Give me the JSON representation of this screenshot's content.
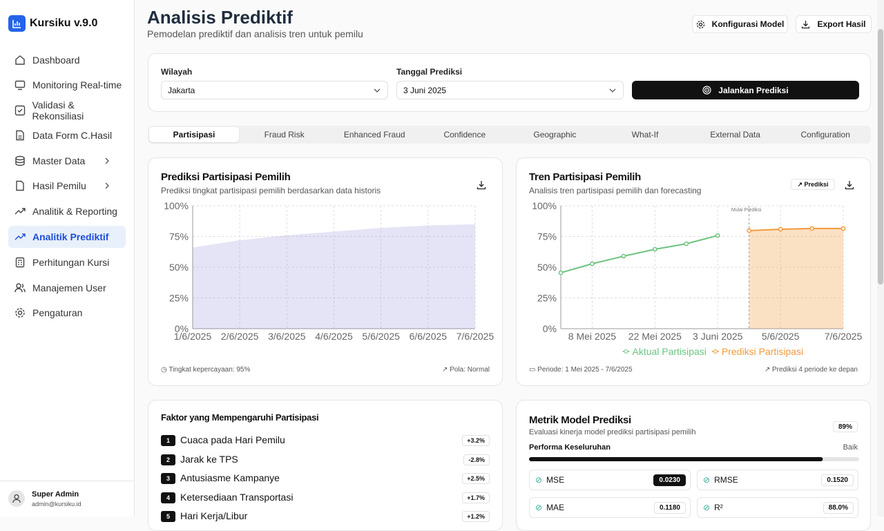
{
  "app": {
    "name": "Kursiku v.9.0"
  },
  "nav": [
    "Dashboard",
    "Monitoring Real-time",
    "Validasi & Rekonsiliasi",
    "Data Form C.Hasil",
    "Master Data",
    "Hasil Pemilu",
    "Analitik & Reporting",
    "Analitik Prediktif",
    "Perhitungan Kursi",
    "Manajemen User",
    "Pengaturan"
  ],
  "user": {
    "name": "Super Admin",
    "email": "admin@kursiku.id"
  },
  "header": {
    "title": "Analisis Prediktif",
    "subtitle": "Pemodelan prediktif dan analisis tren untuk pemilu",
    "buttons": [
      "Konfigurasi Model",
      "Export Hasil"
    ]
  },
  "filters": {
    "region_label": "Wilayah",
    "region_value": "Jakarta",
    "date_label": "Tanggal Prediksi",
    "date_value": "3 Juni 2025",
    "run_button": "Jalankan Prediksi"
  },
  "tabs": [
    "Partisipasi",
    "Fraud Risk",
    "Enhanced Fraud",
    "Confidence",
    "Geographic",
    "What-If",
    "External Data",
    "Configuration"
  ],
  "chart_data": [
    {
      "type": "area",
      "title": "Prediksi Partisipasi Pemilih",
      "subtitle": "Prediksi tingkat partisipasi pemilih berdasarkan data historis",
      "categories": [
        "1/6/2025",
        "2/6/2025",
        "3/6/2025",
        "4/6/2025",
        "5/6/2025",
        "6/6/2025",
        "7/6/2025"
      ],
      "values": [
        66,
        72,
        76,
        79,
        82,
        84,
        85
      ],
      "color": "#8884d8",
      "ylim": [
        0,
        100
      ],
      "yticks": [
        {
          "value": 0,
          "label": "0%"
        },
        {
          "value": 25,
          "label": "25%"
        },
        {
          "value": 50,
          "label": "50%"
        },
        {
          "value": 75,
          "label": "75%"
        },
        {
          "value": 100,
          "label": "100%"
        }
      ],
      "grid": true,
      "footer_left": "Tingkat kepercayaan: 95%",
      "footer_right": "Pola: Normal"
    },
    {
      "type": "line",
      "title": "Tren Partisipasi Pemilih",
      "subtitle": "Analisis tren partisipasi pemilih dan forecasting",
      "badge": "Prediksi",
      "annotation": "Mulai Prediksi",
      "categories": [
        null,
        "8 Mei 2025",
        null,
        "22 Mei 2025",
        null,
        "3 Juni 2025",
        null,
        "5/6/2025",
        null,
        "7/6/2025"
      ],
      "series": [
        {
          "name": "Aktual Partisipasi",
          "color": "#6cc47f",
          "fill": false,
          "values": [
            45.5,
            52.8,
            59,
            64.6,
            69.1,
            75.8,
            null,
            null,
            null,
            null
          ]
        },
        {
          "name": "Prediksi Partisipasi",
          "color": "#f39a3c",
          "fill": true,
          "values": [
            null,
            null,
            null,
            null,
            null,
            null,
            79.8,
            80.9,
            81.5,
            81.5
          ]
        }
      ],
      "ylim": [
        0,
        100
      ],
      "yticks": [
        {
          "value": 0,
          "label": "0%"
        },
        {
          "value": 25,
          "label": "25%"
        },
        {
          "value": 50,
          "label": "50%"
        },
        {
          "value": 75,
          "label": "75%"
        },
        {
          "value": 100,
          "label": "100%"
        }
      ],
      "grid": true,
      "legend": "bottom",
      "footer_left": "Periode: 1 Mei 2025 - 7/6/2025",
      "footer_right": "Prediksi 4 periode ke depan"
    }
  ],
  "factors": {
    "title": "Faktor yang Mempengaruhi Partisipasi",
    "items": [
      {
        "rank": 1,
        "name": "Cuaca pada Hari Pemilu",
        "impact": "+3.2%"
      },
      {
        "rank": 2,
        "name": "Jarak ke TPS",
        "impact": "-2.8%"
      },
      {
        "rank": 3,
        "name": "Antusiasme Kampanye",
        "impact": "+2.5%"
      },
      {
        "rank": 4,
        "name": "Ketersediaan Transportasi",
        "impact": "+1.7%"
      },
      {
        "rank": 5,
        "name": "Hari Kerja/Libur",
        "impact": "+1.2%"
      }
    ]
  },
  "metrics": {
    "title": "Metrik Model Prediksi",
    "subtitle": "Evaluasi kinerja model prediksi partisipasi pemilih",
    "score": 89,
    "score_label": "89%",
    "performance_label": "Performa Keseluruhan",
    "performance_value": "Baik",
    "items": [
      {
        "name": "MSE",
        "value": "0.0230"
      },
      {
        "name": "RMSE",
        "value": "0.1520"
      },
      {
        "name": "MAE",
        "value": "0.1180"
      },
      {
        "name": "R²",
        "value": "88.0%"
      }
    ]
  }
}
